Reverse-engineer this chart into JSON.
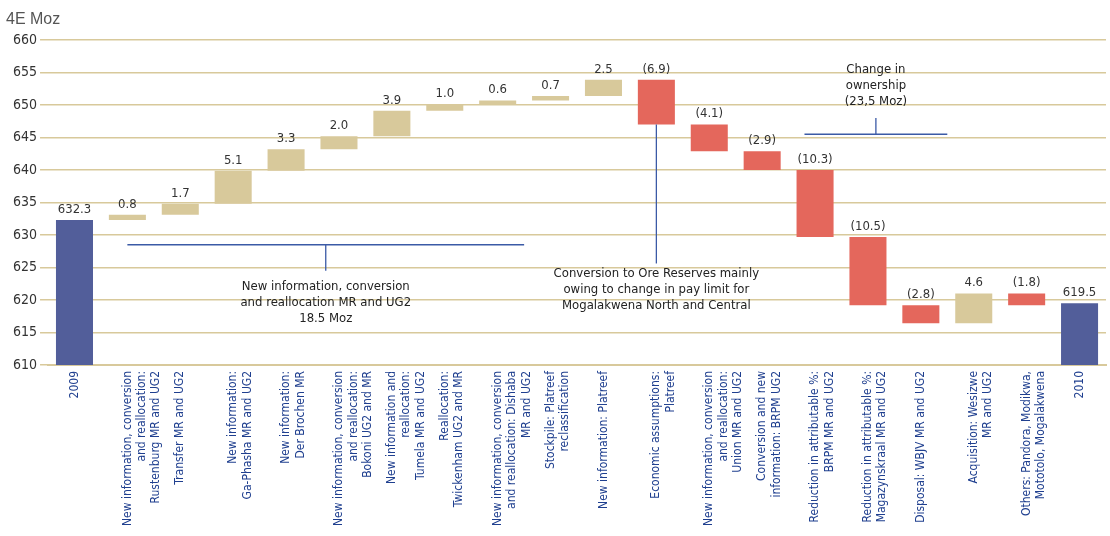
{
  "chart_data": {
    "type": "bar",
    "ylabel": "4E Moz",
    "categories": [
      "2009",
      "New information, conversion\nand reallocation:\nRustenburg MR and UG2",
      "Transfer MR and UG2",
      "New information:\nGa-Phasha MR and UG2",
      "New information:\nDer Brochen MR",
      "New information, conversion\nand reallocation:\nBokoni UG2 and MR",
      "New information and\nreallocation:\nTumela MR and UG2",
      "Reallocation:\nTwickenham UG2 and MR",
      "New information, conversion\nand reallocation: Dishaba\nMR and UG2",
      "Stockpile: Platreef\nreclassification",
      "New information: Platreef",
      "Economic assumptions:\nPlatreef",
      "New information, conversion\nand reallocation:\nUnion MR and UG2",
      "Conversion and new\ninformation: BRPM UG2",
      "Reduction in attributable %:\nBRPM MR and UG2",
      "Reduction in attributable %:\nMagazynskraal MR and UG2",
      "Disposal: WBJV MR and UG2",
      "Acquisition: Wesizwe\nMR and UG2",
      "Others: Pandora, Modikwa,\nMototolo, Mogalakwena",
      "2010"
    ],
    "base": [
      610,
      632.3,
      633.1,
      634.8,
      639.9,
      643.2,
      645.2,
      649.1,
      650.1,
      650.7,
      651.4,
      653.9,
      647.0,
      642.9,
      640.0,
      629.7,
      619.2,
      616.4,
      621.0,
      610
    ],
    "values": [
      22.3,
      0.8,
      1.7,
      5.1,
      3.3,
      2.0,
      3.9,
      1.0,
      0.6,
      0.7,
      2.5,
      -6.9,
      -4.1,
      -2.9,
      -10.3,
      -10.5,
      -2.8,
      4.6,
      -1.8,
      9.5
    ],
    "value_labels": [
      "632.3",
      "0.8",
      "1.7",
      "5.1",
      "3.3",
      "2.0",
      "3.9",
      "1.0",
      "0.6",
      "0.7",
      "2.5",
      "(6.9)",
      "(4.1)",
      "(2.9)",
      "(10.3)",
      "(10.5)",
      "(2.8)",
      "4.6",
      "(1.8)",
      "619.5"
    ],
    "colors": [
      "#525e9a",
      "#d8c99b",
      "#d8c99b",
      "#d8c99b",
      "#d8c99b",
      "#d8c99b",
      "#d8c99b",
      "#d8c99b",
      "#d8c99b",
      "#d8c99b",
      "#d8c99b",
      "#e4675c",
      "#e4675c",
      "#e4675c",
      "#e4675c",
      "#e4675c",
      "#e4675c",
      "#d8c99b",
      "#e4675c",
      "#525e9a"
    ],
    "ylim": [
      610,
      660
    ],
    "yticks": [
      610,
      615,
      620,
      625,
      630,
      635,
      640,
      645,
      650,
      655,
      660
    ],
    "grid": "y",
    "legend": false,
    "annotations": [
      "New information, conversion\nand reallocation MR and UG2\n18.5 Moz",
      {
        "text": "Conversion to Ore Reserves mainly\nowing to change in pay limit for\nMogalakwena North and Central",
        "y": 647.0
      },
      "Change in\nownership\n(23,5 Moz)"
    ]
  }
}
